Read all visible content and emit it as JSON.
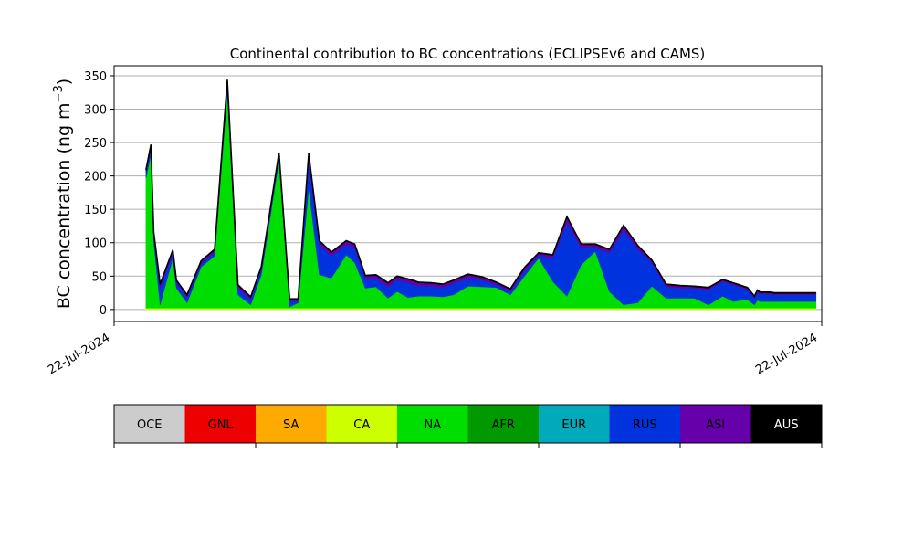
{
  "chart_data": {
    "type": "area",
    "stacked": true,
    "title": "Continental contribution to BC concentrations (ECLIPSEv6 and CAMS)",
    "ylabel_main": "BC concentration (ng m",
    "ylabel_sup": "−3",
    "ylabel_close": ")",
    "ylim": [
      -18,
      365
    ],
    "xlim": [
      0,
      100
    ],
    "grid": "y",
    "yticks": [
      0,
      50,
      100,
      150,
      200,
      250,
      300,
      350
    ],
    "xtick_labels": [
      "22-Jul-2024",
      "22-Jul-2024"
    ],
    "x": [
      4.5,
      5.2,
      5.6,
      6.5,
      8.3,
      8.8,
      10.3,
      12.3,
      14.2,
      16.0,
      17.5,
      19.3,
      20.8,
      23.3,
      24.8,
      26.0,
      27.5,
      29.0,
      30.7,
      32.8,
      34.0,
      35.5,
      37.0,
      38.7,
      40.0,
      41.5,
      43.0,
      44.8,
      46.5,
      48.0,
      50.0,
      52.0,
      54.0,
      56.0,
      58.0,
      60.0,
      62.0,
      64.0,
      66.0,
      68.0,
      70.0,
      72.0,
      74.0,
      76.0,
      78.0,
      80.0,
      82.0,
      84.0,
      86.0,
      87.5,
      89.5,
      90.5,
      90.9,
      91.3,
      91.8,
      92.3,
      92.8,
      93.3,
      94.0,
      95.0,
      96.0,
      97.0,
      99.2
    ],
    "series": [
      {
        "name": "CA",
        "color": "#ccff00",
        "values": [
          2,
          2,
          2,
          2,
          2,
          2,
          2,
          2,
          2,
          2,
          2,
          2,
          2,
          2,
          2,
          2,
          2,
          2,
          2,
          2,
          2,
          2,
          2,
          2,
          2,
          2,
          2,
          2,
          2,
          2,
          2,
          2,
          2,
          2,
          2,
          2,
          2,
          2,
          2,
          2,
          2,
          2,
          2,
          2,
          2,
          2,
          2,
          2,
          2,
          2,
          2,
          2,
          2,
          2,
          2,
          2,
          2,
          2,
          2,
          2,
          2,
          2,
          2
        ]
      },
      {
        "name": "NA",
        "color": "#00dd00",
        "values": [
          195,
          230,
          100,
          5,
          75,
          30,
          8,
          62,
          78,
          325,
          20,
          5,
          50,
          222,
          2,
          8,
          180,
          50,
          45,
          80,
          68,
          30,
          32,
          15,
          25,
          16,
          18,
          18,
          17,
          20,
          33,
          32,
          31,
          20,
          48,
          75,
          40,
          18,
          65,
          85,
          25,
          5,
          8,
          33,
          15,
          15,
          15,
          5,
          18,
          10,
          13,
          5,
          12,
          10,
          10,
          10,
          10,
          10,
          10,
          10,
          10,
          10,
          10
        ]
      },
      {
        "name": "RUS",
        "color": "#0033dd",
        "values": [
          8,
          10,
          10,
          25,
          8,
          8,
          8,
          5,
          6,
          10,
          10,
          8,
          8,
          6,
          8,
          3,
          40,
          45,
          33,
          15,
          22,
          15,
          12,
          17,
          17,
          22,
          15,
          15,
          14,
          17,
          12,
          10,
          4,
          5,
          8,
          4,
          35,
          110,
          25,
          5,
          58,
          112,
          80,
          35,
          17,
          15,
          15,
          23,
          22,
          25,
          15,
          10,
          12,
          11,
          11,
          11,
          11,
          10,
          10,
          10,
          10,
          10,
          10
        ]
      },
      {
        "name": "ASI",
        "color": "#6600aa",
        "values": [
          3,
          3,
          3,
          5,
          3,
          3,
          3,
          3,
          3,
          5,
          4,
          3,
          3,
          4,
          3,
          2,
          10,
          5,
          5,
          5,
          5,
          3,
          5,
          5,
          5,
          5,
          5,
          4,
          4,
          4,
          5,
          4,
          3,
          3,
          4,
          3,
          4,
          8,
          5,
          5,
          4,
          6,
          5,
          3,
          3,
          3,
          2,
          2,
          2,
          2,
          2,
          2,
          2,
          2,
          2,
          2,
          2,
          2,
          2,
          2,
          2,
          2,
          2
        ]
      },
      {
        "name": "AUS",
        "color": "#000000",
        "values": [
          1,
          2,
          1,
          1,
          1,
          1,
          1,
          1,
          1,
          2,
          1,
          1,
          1,
          1,
          1,
          1,
          2,
          1,
          1,
          1,
          1,
          1,
          1,
          1,
          1,
          1,
          1,
          1,
          1,
          1,
          1,
          1,
          1,
          1,
          1,
          1,
          1,
          1,
          1,
          1,
          1,
          1,
          1,
          1,
          1,
          1,
          1,
          1,
          1,
          1,
          1,
          1,
          1,
          1,
          1,
          1,
          1,
          1,
          1,
          1,
          1,
          1,
          1
        ]
      }
    ],
    "legend": {
      "placement": "bottom",
      "entries": [
        {
          "name": "OCE",
          "color": "#cccccc",
          "text_color": "#000000"
        },
        {
          "name": "GNL",
          "color": "#ee0000",
          "text_color": "#000000"
        },
        {
          "name": "SA",
          "color": "#ffaa00",
          "text_color": "#000000"
        },
        {
          "name": "CA",
          "color": "#ccff00",
          "text_color": "#000000"
        },
        {
          "name": "NA",
          "color": "#00dd00",
          "text_color": "#000000"
        },
        {
          "name": "AFR",
          "color": "#009900",
          "text_color": "#000000"
        },
        {
          "name": "EUR",
          "color": "#00aabb",
          "text_color": "#000000"
        },
        {
          "name": "RUS",
          "color": "#0033dd",
          "text_color": "#000000"
        },
        {
          "name": "ASI",
          "color": "#6600aa",
          "text_color": "#000000"
        },
        {
          "name": "AUS",
          "color": "#000000",
          "text_color": "#ffffff"
        }
      ]
    }
  }
}
